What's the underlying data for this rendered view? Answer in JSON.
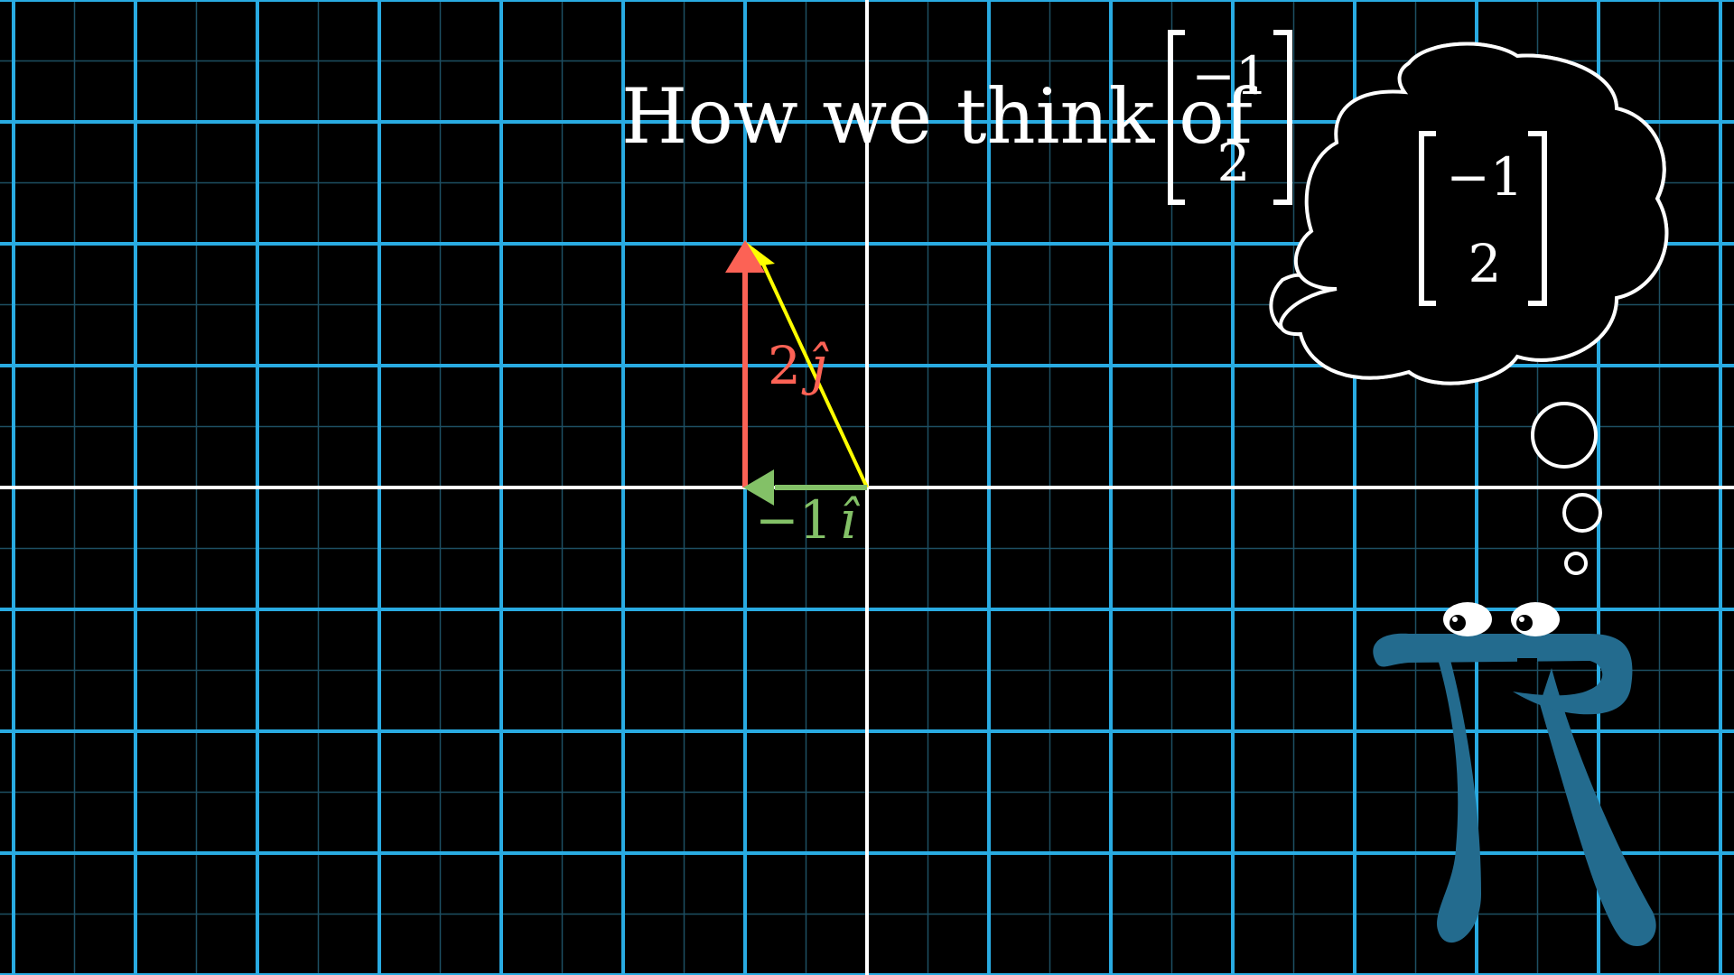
{
  "title": {
    "text": "How we think of",
    "vector_top": "−1",
    "vector_bottom": "2"
  },
  "thought_bubble": {
    "vector_top": "−1",
    "vector_bottom": "2"
  },
  "vectors": {
    "j_label_coef": "2",
    "j_label_sym": "ĵ",
    "i_label_coef": "−1",
    "i_label_sym": "î",
    "sum": [
      -1,
      2
    ],
    "j_component": [
      0,
      2
    ],
    "i_component": [
      -1,
      0
    ]
  },
  "colors": {
    "background": "#000000",
    "grid_major": "#29abe2",
    "grid_minor": "#1d4f63",
    "axis": "#ffffff",
    "j_hat": "#fc6255",
    "i_hat": "#83c167",
    "sum_vector": "#ffff00",
    "pi_creature": "#236b8e",
    "text": "#ffffff"
  },
  "icons": {
    "character": "pi-creature-icon"
  }
}
